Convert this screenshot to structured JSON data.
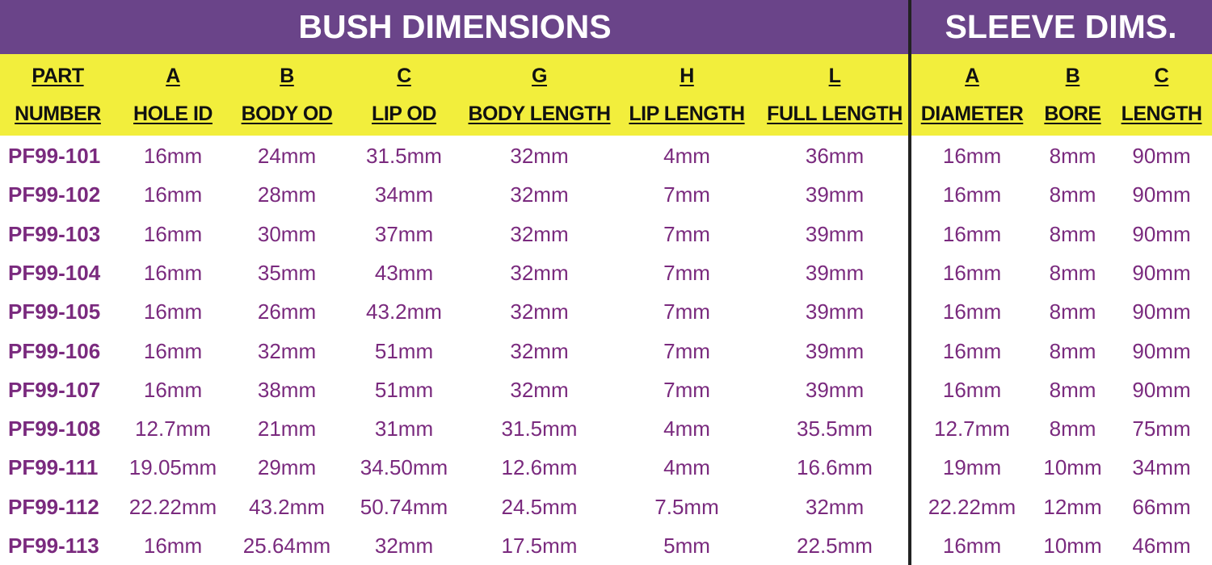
{
  "titles": {
    "bush": "BUSH DIMENSIONS",
    "sleeve": "SLEEVE DIMS."
  },
  "colors": {
    "title_bg": "#6a4489",
    "header_bg": "#f2ee3c",
    "value_text": "#7a2a7e",
    "divider": "#222222"
  },
  "columns": [
    {
      "letter": "PART",
      "label": "NUMBER"
    },
    {
      "letter": "A",
      "label": "HOLE ID"
    },
    {
      "letter": "B",
      "label": "BODY OD"
    },
    {
      "letter": "C",
      "label": "LIP OD"
    },
    {
      "letter": "G",
      "label": "BODY LENGTH"
    },
    {
      "letter": "H",
      "label": "LIP LENGTH"
    },
    {
      "letter": "L",
      "label": "FULL LENGTH"
    },
    {
      "letter": "A",
      "label": "DIAMETER"
    },
    {
      "letter": "B",
      "label": "BORE"
    },
    {
      "letter": "C",
      "label": "LENGTH"
    }
  ],
  "rows": [
    [
      "PF99-101",
      "16mm",
      "24mm",
      "31.5mm",
      "32mm",
      "4mm",
      "36mm",
      "16mm",
      "8mm",
      "90mm"
    ],
    [
      "PF99-102",
      "16mm",
      "28mm",
      "34mm",
      "32mm",
      "7mm",
      "39mm",
      "16mm",
      "8mm",
      "90mm"
    ],
    [
      "PF99-103",
      "16mm",
      "30mm",
      "37mm",
      "32mm",
      "7mm",
      "39mm",
      "16mm",
      "8mm",
      "90mm"
    ],
    [
      "PF99-104",
      "16mm",
      "35mm",
      "43mm",
      "32mm",
      "7mm",
      "39mm",
      "16mm",
      "8mm",
      "90mm"
    ],
    [
      "PF99-105",
      "16mm",
      "26mm",
      "43.2mm",
      "32mm",
      "7mm",
      "39mm",
      "16mm",
      "8mm",
      "90mm"
    ],
    [
      "PF99-106",
      "16mm",
      "32mm",
      "51mm",
      "32mm",
      "7mm",
      "39mm",
      "16mm",
      "8mm",
      "90mm"
    ],
    [
      "PF99-107",
      "16mm",
      "38mm",
      "51mm",
      "32mm",
      "7mm",
      "39mm",
      "16mm",
      "8mm",
      "90mm"
    ],
    [
      "PF99-108",
      "12.7mm",
      "21mm",
      "31mm",
      "31.5mm",
      "4mm",
      "35.5mm",
      "12.7mm",
      "8mm",
      "75mm"
    ],
    [
      "PF99-111",
      "19.05mm",
      "29mm",
      "34.50mm",
      "12.6mm",
      "4mm",
      "16.6mm",
      "19mm",
      "10mm",
      "34mm"
    ],
    [
      "PF99-112",
      "22.22mm",
      "43.2mm",
      "50.74mm",
      "24.5mm",
      "7.5mm",
      "32mm",
      "22.22mm",
      "12mm",
      "66mm"
    ],
    [
      "PF99-113",
      "16mm",
      "25.64mm",
      "32mm",
      "17.5mm",
      "5mm",
      "22.5mm",
      "16mm",
      "10mm",
      "46mm"
    ]
  ]
}
